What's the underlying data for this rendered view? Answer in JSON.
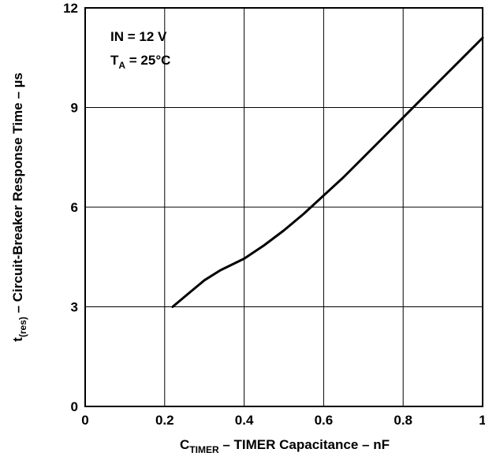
{
  "chart_data": {
    "type": "line",
    "xlabel": {
      "main": "C",
      "sub": "TIMER",
      "rest": " – TIMER Capacitance – nF"
    },
    "ylabel": {
      "main": "t",
      "sub": "(res)",
      "rest": " – Circuit-Breaker Response Time – µs"
    },
    "xlim": [
      0,
      1
    ],
    "ylim": [
      0,
      12
    ],
    "x_ticks": [
      0,
      0.2,
      0.4,
      0.6,
      0.8,
      1
    ],
    "x_tick_labels": [
      "0",
      "0.2",
      "0.4",
      "0.6",
      "0.8",
      "1"
    ],
    "y_ticks": [
      0,
      3,
      6,
      9,
      12
    ],
    "y_tick_labels": [
      "0",
      "3",
      "6",
      "9",
      "12"
    ],
    "grid": true,
    "annotations": {
      "line1": "IN = 12 V",
      "line2_main": "T",
      "line2_sub": "A",
      "line2_rest": " = 25°C"
    },
    "series": [
      {
        "color": "#000000",
        "x": [
          0.22,
          0.26,
          0.3,
          0.34,
          0.4,
          0.45,
          0.5,
          0.55,
          0.6,
          0.65,
          0.7,
          0.75,
          0.8,
          0.85,
          0.9,
          0.95,
          1.0
        ],
        "y": [
          3.0,
          3.4,
          3.8,
          4.1,
          4.45,
          4.85,
          5.3,
          5.8,
          6.35,
          6.9,
          7.5,
          8.1,
          8.7,
          9.3,
          9.9,
          10.5,
          11.1
        ]
      }
    ]
  }
}
